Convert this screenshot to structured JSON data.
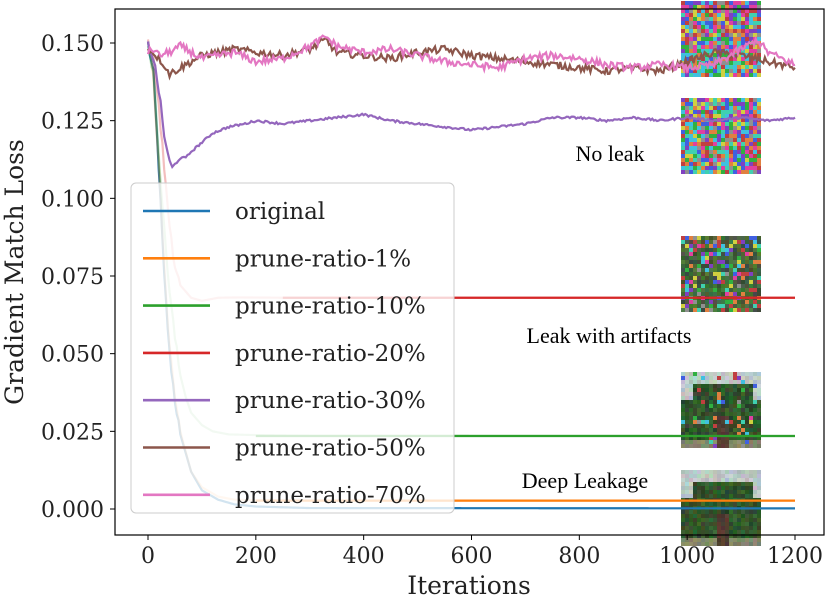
{
  "chart_data": {
    "type": "line",
    "title": "",
    "xlabel": "Iterations",
    "ylabel": "Gradient Match Loss",
    "xlim": [
      -25,
      1225
    ],
    "ylim": [
      -0.005,
      0.16
    ],
    "xticks": [
      0,
      200,
      400,
      600,
      800,
      1000,
      1200
    ],
    "yticks": [
      0.0,
      0.025,
      0.05,
      0.075,
      0.1,
      0.125,
      0.15
    ],
    "xtick_labels": [
      "0",
      "200",
      "400",
      "600",
      "800",
      "1000",
      "1200"
    ],
    "ytick_labels": [
      "0.000",
      "0.025",
      "0.050",
      "0.075",
      "0.100",
      "0.125",
      "0.150"
    ],
    "grid": false,
    "legend_position": "left",
    "series": [
      {
        "name": "original",
        "color": "#1f77b4",
        "alpha": 1.0,
        "x": [
          0,
          10,
          20,
          30,
          40,
          50,
          60,
          80,
          100,
          130,
          160,
          200,
          300,
          1200
        ],
        "y": [
          0.15,
          0.14,
          0.11,
          0.075,
          0.05,
          0.035,
          0.024,
          0.012,
          0.006,
          0.003,
          0.0015,
          0.0008,
          0.0003,
          0.0002
        ]
      },
      {
        "name": "prune-ratio-1%",
        "color": "#ff7f0e",
        "alpha": 0.3,
        "x": [
          0,
          10,
          20,
          30,
          40,
          50,
          60,
          80,
          100,
          130,
          160,
          200,
          300,
          1200
        ],
        "y": [
          0.15,
          0.14,
          0.11,
          0.078,
          0.053,
          0.036,
          0.025,
          0.012,
          0.007,
          0.004,
          0.003,
          0.0028,
          0.0027,
          0.0027
        ]
      },
      {
        "name": "prune-ratio-10%",
        "color": "#2ca02c",
        "alpha": 0.3,
        "x": [
          0,
          10,
          20,
          30,
          40,
          50,
          60,
          70,
          80,
          100,
          120,
          150,
          200,
          300,
          1200
        ],
        "y": [
          0.15,
          0.14,
          0.115,
          0.09,
          0.07,
          0.055,
          0.043,
          0.036,
          0.031,
          0.027,
          0.025,
          0.024,
          0.0238,
          0.0236,
          0.0235
        ]
      },
      {
        "name": "prune-ratio-20%",
        "color": "#d62728",
        "alpha": 0.3,
        "x": [
          0,
          10,
          20,
          30,
          40,
          50,
          60,
          70,
          80,
          100,
          130,
          170,
          250,
          1200
        ],
        "y": [
          0.15,
          0.145,
          0.13,
          0.11,
          0.09,
          0.078,
          0.072,
          0.07,
          0.068,
          0.067,
          0.068,
          0.0681,
          0.068,
          0.068
        ]
      },
      {
        "name": "prune-ratio-30%",
        "color": "#9467bd",
        "alpha": 1.0,
        "x": [
          0,
          10,
          20,
          30,
          40,
          45,
          50,
          60,
          70,
          80,
          100,
          120,
          150,
          180,
          200,
          250,
          300,
          350,
          400,
          450,
          500,
          550,
          600,
          650,
          700,
          750,
          800,
          850,
          900,
          950,
          1000,
          1050,
          1100,
          1150,
          1200
        ],
        "y": [
          0.15,
          0.145,
          0.135,
          0.12,
          0.112,
          0.11,
          0.111,
          0.113,
          0.113,
          0.115,
          0.118,
          0.121,
          0.123,
          0.124,
          0.125,
          0.124,
          0.125,
          0.126,
          0.127,
          0.125,
          0.124,
          0.123,
          0.122,
          0.123,
          0.124,
          0.126,
          0.126,
          0.125,
          0.126,
          0.125,
          0.126,
          0.125,
          0.126,
          0.125,
          0.126
        ]
      },
      {
        "name": "prune-ratio-50%",
        "color": "#8c564b",
        "alpha": 1.0,
        "x": [
          0,
          10,
          20,
          30,
          40,
          60,
          80,
          100,
          130,
          160,
          200,
          250,
          300,
          330,
          350,
          400,
          450,
          500,
          550,
          600,
          650,
          700,
          750,
          800,
          850,
          900,
          950,
          1000,
          1050,
          1100,
          1150,
          1200
        ],
        "y": [
          0.148,
          0.147,
          0.145,
          0.143,
          0.14,
          0.142,
          0.144,
          0.146,
          0.147,
          0.148,
          0.147,
          0.146,
          0.148,
          0.151,
          0.147,
          0.146,
          0.145,
          0.147,
          0.148,
          0.146,
          0.145,
          0.144,
          0.143,
          0.142,
          0.141,
          0.142,
          0.141,
          0.144,
          0.147,
          0.146,
          0.144,
          0.142
        ]
      },
      {
        "name": "prune-ratio-70%",
        "color": "#e377c2",
        "alpha": 1.0,
        "x": [
          0,
          10,
          20,
          40,
          60,
          80,
          100,
          130,
          160,
          200,
          250,
          300,
          330,
          350,
          400,
          450,
          500,
          550,
          600,
          650,
          700,
          750,
          800,
          850,
          900,
          950,
          1000,
          1050,
          1100,
          1130,
          1150,
          1200
        ],
        "y": [
          0.147,
          0.148,
          0.146,
          0.147,
          0.149,
          0.147,
          0.145,
          0.146,
          0.147,
          0.144,
          0.145,
          0.149,
          0.152,
          0.149,
          0.147,
          0.148,
          0.146,
          0.144,
          0.143,
          0.142,
          0.145,
          0.146,
          0.145,
          0.143,
          0.142,
          0.143,
          0.142,
          0.143,
          0.148,
          0.151,
          0.147,
          0.143
        ]
      }
    ],
    "annotations": [
      {
        "text": "No leak"
      },
      {
        "text": "Leak with artifacts"
      },
      {
        "text": "Deep Leakage"
      }
    ],
    "images": [
      {
        "name": "noise-image-1",
        "kind": "noise"
      },
      {
        "name": "noise-image-2",
        "kind": "noise"
      },
      {
        "name": "artifact-image",
        "kind": "artifact"
      },
      {
        "name": "blurred-tree-image",
        "kind": "blurred-tree"
      },
      {
        "name": "tree-image",
        "kind": "tree"
      }
    ]
  }
}
